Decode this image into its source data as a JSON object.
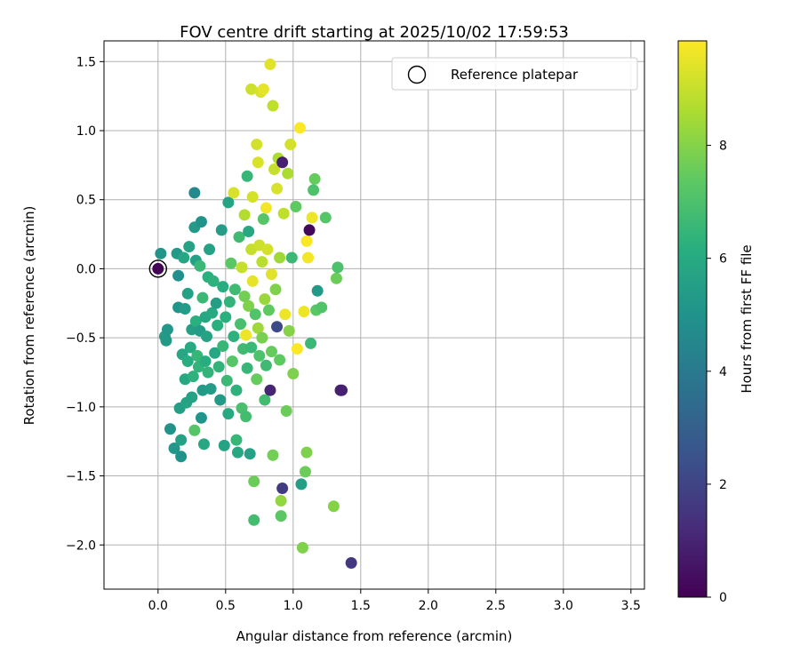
{
  "chart_data": {
    "type": "scatter",
    "title": "FOV centre drift starting at 2025/10/02 17:59:53",
    "xlabel": "Angular distance from reference (arcmin)",
    "ylabel": "Rotation from reference (arcmin)",
    "xlim": [
      -0.4,
      3.6
    ],
    "ylim": [
      -2.32,
      1.65
    ],
    "xticks": [
      0.0,
      0.5,
      1.0,
      1.5,
      2.0,
      2.5,
      3.0,
      3.5
    ],
    "xtick_labels": [
      "0.0",
      "0.5",
      "1.0",
      "1.5",
      "2.0",
      "2.5",
      "3.0",
      "3.5"
    ],
    "yticks": [
      -2.0,
      -1.5,
      -1.0,
      -0.5,
      0.0,
      0.5,
      1.0,
      1.5
    ],
    "ytick_labels": [
      "−2.0",
      "−1.5",
      "−1.0",
      "−0.5",
      "0.0",
      "0.5",
      "1.0",
      "1.5"
    ],
    "grid": true,
    "legend": {
      "placement": "top-right",
      "entries": [
        "Reference platepar"
      ]
    },
    "reference_point": {
      "x": 0.0,
      "y": 0.0
    },
    "colorbar": {
      "label": "Hours from first FF file",
      "range": [
        0,
        9.85
      ],
      "ticks": [
        0,
        2,
        4,
        6,
        8
      ],
      "tick_labels": [
        "0",
        "2",
        "4",
        "6",
        "8"
      ],
      "colormap": "viridis"
    },
    "points": [
      {
        "x": 0.0,
        "y": 0.0,
        "c": 0.1
      },
      {
        "x": 0.02,
        "y": 0.11,
        "c": 5.1
      },
      {
        "x": 0.05,
        "y": -0.49,
        "c": 5.4
      },
      {
        "x": 0.06,
        "y": -0.52,
        "c": 5.3
      },
      {
        "x": 0.07,
        "y": -0.44,
        "c": 5.2
      },
      {
        "x": 0.09,
        "y": -1.16,
        "c": 5.0
      },
      {
        "x": 0.12,
        "y": -1.3,
        "c": 5.2
      },
      {
        "x": 0.14,
        "y": 0.11,
        "c": 5.3
      },
      {
        "x": 0.15,
        "y": -0.05,
        "c": 4.9
      },
      {
        "x": 0.15,
        "y": -0.28,
        "c": 5.1
      },
      {
        "x": 0.16,
        "y": -1.01,
        "c": 5.5
      },
      {
        "x": 0.17,
        "y": -1.24,
        "c": 5.6
      },
      {
        "x": 0.17,
        "y": -1.36,
        "c": 5.0
      },
      {
        "x": 0.18,
        "y": -0.62,
        "c": 5.8
      },
      {
        "x": 0.19,
        "y": 0.08,
        "c": 5.8
      },
      {
        "x": 0.2,
        "y": -0.29,
        "c": 5.4
      },
      {
        "x": 0.2,
        "y": -0.8,
        "c": 5.9
      },
      {
        "x": 0.21,
        "y": -0.97,
        "c": 5.7
      },
      {
        "x": 0.22,
        "y": -0.18,
        "c": 5.6
      },
      {
        "x": 0.22,
        "y": -0.67,
        "c": 6.1
      },
      {
        "x": 0.23,
        "y": 0.16,
        "c": 5.7
      },
      {
        "x": 0.24,
        "y": -0.57,
        "c": 6.0
      },
      {
        "x": 0.25,
        "y": -0.44,
        "c": 5.5
      },
      {
        "x": 0.25,
        "y": -0.93,
        "c": 5.6
      },
      {
        "x": 0.26,
        "y": -0.78,
        "c": 6.3
      },
      {
        "x": 0.27,
        "y": 0.55,
        "c": 4.6
      },
      {
        "x": 0.27,
        "y": 0.3,
        "c": 5.3
      },
      {
        "x": 0.27,
        "y": -1.17,
        "c": 7.2
      },
      {
        "x": 0.28,
        "y": 0.06,
        "c": 5.6
      },
      {
        "x": 0.28,
        "y": -0.38,
        "c": 6.2
      },
      {
        "x": 0.29,
        "y": -0.63,
        "c": 6.5
      },
      {
        "x": 0.3,
        "y": -0.71,
        "c": 6.4
      },
      {
        "x": 0.31,
        "y": 0.02,
        "c": 6.6
      },
      {
        "x": 0.31,
        "y": -0.45,
        "c": 5.4
      },
      {
        "x": 0.32,
        "y": 0.34,
        "c": 5.0
      },
      {
        "x": 0.32,
        "y": -1.08,
        "c": 5.1
      },
      {
        "x": 0.33,
        "y": -0.21,
        "c": 6.6
      },
      {
        "x": 0.33,
        "y": -0.88,
        "c": 5.3
      },
      {
        "x": 0.34,
        "y": -1.27,
        "c": 5.9
      },
      {
        "x": 0.35,
        "y": -0.35,
        "c": 5.8
      },
      {
        "x": 0.35,
        "y": -0.67,
        "c": 6.1
      },
      {
        "x": 0.36,
        "y": -0.49,
        "c": 5.7
      },
      {
        "x": 0.37,
        "y": -0.06,
        "c": 6.2
      },
      {
        "x": 0.37,
        "y": -0.75,
        "c": 6.4
      },
      {
        "x": 0.38,
        "y": 0.14,
        "c": 5.6
      },
      {
        "x": 0.39,
        "y": -0.87,
        "c": 5.4
      },
      {
        "x": 0.4,
        "y": -0.32,
        "c": 6.0
      },
      {
        "x": 0.41,
        "y": -0.09,
        "c": 6.3
      },
      {
        "x": 0.42,
        "y": -0.61,
        "c": 5.8
      },
      {
        "x": 0.43,
        "y": -0.25,
        "c": 5.5
      },
      {
        "x": 0.44,
        "y": -0.41,
        "c": 6.2
      },
      {
        "x": 0.45,
        "y": -0.71,
        "c": 6.4
      },
      {
        "x": 0.46,
        "y": -0.95,
        "c": 5.3
      },
      {
        "x": 0.47,
        "y": 0.28,
        "c": 5.4
      },
      {
        "x": 0.48,
        "y": -0.13,
        "c": 6.1
      },
      {
        "x": 0.48,
        "y": -0.56,
        "c": 6.5
      },
      {
        "x": 0.49,
        "y": -1.28,
        "c": 5.7
      },
      {
        "x": 0.5,
        "y": -0.35,
        "c": 6.2
      },
      {
        "x": 0.51,
        "y": -0.81,
        "c": 6.6
      },
      {
        "x": 0.52,
        "y": 0.48,
        "c": 5.7
      },
      {
        "x": 0.52,
        "y": -1.05,
        "c": 6.0
      },
      {
        "x": 0.53,
        "y": -0.24,
        "c": 6.4
      },
      {
        "x": 0.54,
        "y": 0.04,
        "c": 7.3
      },
      {
        "x": 0.55,
        "y": -0.67,
        "c": 7.2
      },
      {
        "x": 0.56,
        "y": 0.55,
        "c": 9.3
      },
      {
        "x": 0.56,
        "y": -0.49,
        "c": 6.3
      },
      {
        "x": 0.57,
        "y": -0.15,
        "c": 6.7
      },
      {
        "x": 0.58,
        "y": -0.88,
        "c": 6.3
      },
      {
        "x": 0.58,
        "y": -1.24,
        "c": 6.5
      },
      {
        "x": 0.59,
        "y": -1.33,
        "c": 5.9
      },
      {
        "x": 0.6,
        "y": 0.23,
        "c": 6.7
      },
      {
        "x": 0.61,
        "y": -0.4,
        "c": 6.9
      },
      {
        "x": 0.62,
        "y": 0.01,
        "c": 9.0
      },
      {
        "x": 0.62,
        "y": -1.01,
        "c": 6.9
      },
      {
        "x": 0.63,
        "y": -0.58,
        "c": 6.7
      },
      {
        "x": 0.64,
        "y": 0.39,
        "c": 8.7
      },
      {
        "x": 0.64,
        "y": -0.2,
        "c": 7.7
      },
      {
        "x": 0.65,
        "y": -0.48,
        "c": 9.6
      },
      {
        "x": 0.65,
        "y": -1.07,
        "c": 6.8
      },
      {
        "x": 0.66,
        "y": 0.67,
        "c": 6.5
      },
      {
        "x": 0.66,
        "y": -0.72,
        "c": 6.5
      },
      {
        "x": 0.67,
        "y": 0.27,
        "c": 5.9
      },
      {
        "x": 0.67,
        "y": -0.27,
        "c": 7.9
      },
      {
        "x": 0.68,
        "y": -1.34,
        "c": 5.6
      },
      {
        "x": 0.69,
        "y": 1.3,
        "c": 9.1
      },
      {
        "x": 0.69,
        "y": 0.14,
        "c": 9.0
      },
      {
        "x": 0.69,
        "y": -0.57,
        "c": 6.6
      },
      {
        "x": 0.7,
        "y": 0.52,
        "c": 9.2
      },
      {
        "x": 0.7,
        "y": -0.09,
        "c": 9.5
      },
      {
        "x": 0.71,
        "y": -1.54,
        "c": 7.6
      },
      {
        "x": 0.71,
        "y": -1.82,
        "c": 6.8
      },
      {
        "x": 0.72,
        "y": -0.33,
        "c": 7.1
      },
      {
        "x": 0.73,
        "y": 0.9,
        "c": 9.2
      },
      {
        "x": 0.73,
        "y": -0.8,
        "c": 7.5
      },
      {
        "x": 0.74,
        "y": 0.77,
        "c": 9.3
      },
      {
        "x": 0.74,
        "y": -0.43,
        "c": 8.4
      },
      {
        "x": 0.75,
        "y": 0.17,
        "c": 9.1
      },
      {
        "x": 0.75,
        "y": -0.63,
        "c": 7.0
      },
      {
        "x": 0.76,
        "y": 1.28,
        "c": 9.3
      },
      {
        "x": 0.77,
        "y": 0.05,
        "c": 8.8
      },
      {
        "x": 0.77,
        "y": -0.5,
        "c": 7.8
      },
      {
        "x": 0.78,
        "y": 1.3,
        "c": 9.5
      },
      {
        "x": 0.78,
        "y": 0.36,
        "c": 7.2
      },
      {
        "x": 0.79,
        "y": -0.22,
        "c": 8.3
      },
      {
        "x": 0.79,
        "y": -0.95,
        "c": 6.8
      },
      {
        "x": 0.8,
        "y": 0.44,
        "c": 9.7
      },
      {
        "x": 0.8,
        "y": -0.7,
        "c": 6.7
      },
      {
        "x": 0.81,
        "y": 0.14,
        "c": 9.2
      },
      {
        "x": 0.82,
        "y": -0.3,
        "c": 7.4
      },
      {
        "x": 0.83,
        "y": 1.48,
        "c": 9.4
      },
      {
        "x": 0.83,
        "y": -0.88,
        "c": 1.0
      },
      {
        "x": 0.84,
        "y": -0.04,
        "c": 9.4
      },
      {
        "x": 0.84,
        "y": -0.6,
        "c": 7.5
      },
      {
        "x": 0.85,
        "y": 1.18,
        "c": 8.9
      },
      {
        "x": 0.85,
        "y": -1.35,
        "c": 7.7
      },
      {
        "x": 0.86,
        "y": 0.72,
        "c": 9.0
      },
      {
        "x": 0.87,
        "y": -0.15,
        "c": 7.9
      },
      {
        "x": 0.88,
        "y": 0.58,
        "c": 9.3
      },
      {
        "x": 0.88,
        "y": -0.42,
        "c": 2.2
      },
      {
        "x": 0.89,
        "y": 0.8,
        "c": 8.6
      },
      {
        "x": 0.9,
        "y": 0.08,
        "c": 8.4
      },
      {
        "x": 0.9,
        "y": -0.66,
        "c": 7.4
      },
      {
        "x": 0.91,
        "y": -1.79,
        "c": 7.3
      },
      {
        "x": 0.91,
        "y": -1.68,
        "c": 8.2
      },
      {
        "x": 0.92,
        "y": 0.77,
        "c": 0.9
      },
      {
        "x": 0.92,
        "y": -1.59,
        "c": 1.7
      },
      {
        "x": 0.93,
        "y": 0.4,
        "c": 8.9
      },
      {
        "x": 0.94,
        "y": -0.33,
        "c": 9.6
      },
      {
        "x": 0.95,
        "y": -1.03,
        "c": 7.6
      },
      {
        "x": 0.96,
        "y": 0.69,
        "c": 8.6
      },
      {
        "x": 0.97,
        "y": -0.45,
        "c": 8.0
      },
      {
        "x": 0.98,
        "y": 0.9,
        "c": 9.2
      },
      {
        "x": 0.99,
        "y": 0.08,
        "c": 6.6
      },
      {
        "x": 1.0,
        "y": -0.76,
        "c": 7.9
      },
      {
        "x": 1.02,
        "y": 0.45,
        "c": 7.4
      },
      {
        "x": 1.03,
        "y": -0.58,
        "c": 9.8
      },
      {
        "x": 1.05,
        "y": 1.02,
        "c": 9.8
      },
      {
        "x": 1.06,
        "y": -1.56,
        "c": 5.5
      },
      {
        "x": 1.07,
        "y": -2.02,
        "c": 7.9
      },
      {
        "x": 1.08,
        "y": -0.31,
        "c": 9.6
      },
      {
        "x": 1.09,
        "y": -1.47,
        "c": 7.6
      },
      {
        "x": 1.1,
        "y": 0.2,
        "c": 9.8
      },
      {
        "x": 1.1,
        "y": -1.33,
        "c": 7.9
      },
      {
        "x": 1.11,
        "y": 0.08,
        "c": 9.7
      },
      {
        "x": 1.12,
        "y": 0.28,
        "c": 0.2
      },
      {
        "x": 1.13,
        "y": -0.54,
        "c": 6.6
      },
      {
        "x": 1.14,
        "y": 0.37,
        "c": 9.6
      },
      {
        "x": 1.15,
        "y": 0.57,
        "c": 7.0
      },
      {
        "x": 1.16,
        "y": 0.65,
        "c": 7.5
      },
      {
        "x": 1.17,
        "y": -0.3,
        "c": 7.3
      },
      {
        "x": 1.18,
        "y": -0.16,
        "c": 5.3
      },
      {
        "x": 1.21,
        "y": -0.28,
        "c": 7.1
      },
      {
        "x": 1.24,
        "y": 0.37,
        "c": 7.2
      },
      {
        "x": 1.3,
        "y": -1.72,
        "c": 8.0
      },
      {
        "x": 1.32,
        "y": -0.07,
        "c": 7.6
      },
      {
        "x": 1.33,
        "y": 0.01,
        "c": 7.0
      },
      {
        "x": 1.35,
        "y": -0.88,
        "c": 1.0
      },
      {
        "x": 1.36,
        "y": -0.88,
        "c": 0.9
      },
      {
        "x": 1.43,
        "y": -2.13,
        "c": 1.6
      }
    ]
  }
}
